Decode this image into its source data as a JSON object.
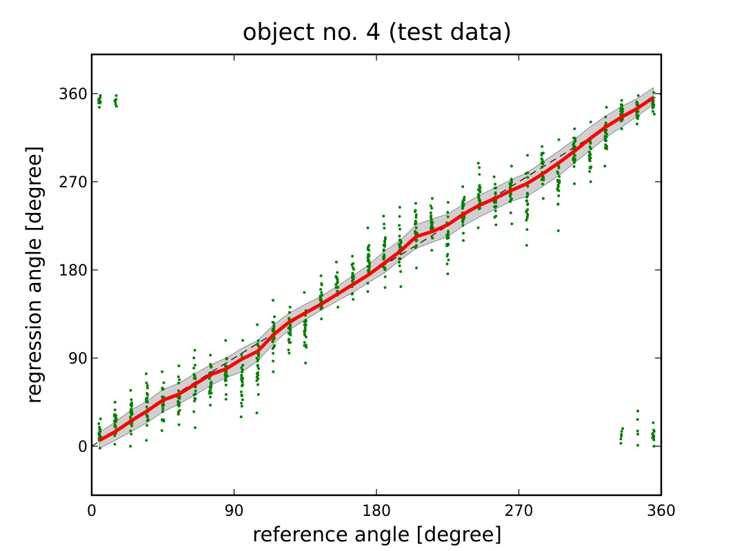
{
  "chart_data": {
    "type": "line",
    "title": "object no. 4 (test data)",
    "xlabel": "reference angle [degree]",
    "ylabel": "regression angle [degree]",
    "xlim": [
      0,
      360
    ],
    "ylim": [
      -50,
      400
    ],
    "xticks": [
      0,
      90,
      180,
      270,
      360
    ],
    "yticks": [
      0,
      90,
      180,
      270,
      360
    ],
    "xtick_labels": [
      "0",
      "90",
      "180",
      "270",
      "360"
    ],
    "ytick_labels": [
      "0",
      "90",
      "180",
      "270",
      "360"
    ],
    "grid": false,
    "legend": "none",
    "colors": {
      "mean_line": "#ff0000",
      "band_fill": "#c8c8c8",
      "band_edge": "#888888",
      "reference_line": "#000000",
      "scatter": "#008000"
    },
    "reference_line": {
      "style": "dashed",
      "x": [
        0,
        360
      ],
      "y": [
        0,
        360
      ]
    },
    "x": [
      5,
      15,
      25,
      35,
      45,
      55,
      65,
      75,
      85,
      95,
      105,
      115,
      125,
      135,
      145,
      155,
      165,
      175,
      185,
      195,
      205,
      215,
      225,
      235,
      245,
      255,
      265,
      275,
      285,
      295,
      305,
      315,
      325,
      335,
      345,
      355
    ],
    "series": [
      {
        "kind": "mean_line",
        "values": [
          6,
          15,
          26,
          36,
          47,
          53,
          63,
          73,
          79,
          89,
          97,
          114,
          127,
          136,
          145,
          155,
          165,
          175,
          187,
          199,
          214,
          219,
          226,
          237,
          246,
          253,
          261,
          268,
          278,
          289,
          301,
          314,
          326,
          336,
          345,
          356
        ]
      },
      {
        "kind": "band",
        "lower": [
          -2,
          6,
          15,
          24,
          35,
          43,
          52,
          62,
          70,
          76,
          87,
          105,
          119,
          129,
          139,
          148,
          157,
          167,
          177,
          190,
          202,
          208,
          214,
          225,
          234,
          242,
          250,
          255,
          265,
          276,
          289,
          302,
          315,
          326,
          337,
          349
        ],
        "upper": [
          14,
          25,
          37,
          46,
          58,
          64,
          74,
          83,
          90,
          100,
          108,
          124,
          136,
          145,
          153,
          163,
          174,
          185,
          199,
          210,
          226,
          232,
          237,
          247,
          256,
          264,
          272,
          279,
          290,
          301,
          313,
          326,
          337,
          347,
          355,
          366
        ]
      }
    ],
    "scatter": [
      {
        "x": 5,
        "y_range": [
          -2,
          28
        ],
        "count": 22
      },
      {
        "x": 15,
        "y_range": [
          2,
          45
        ],
        "count": 24
      },
      {
        "x": 25,
        "y_range": [
          0,
          57
        ],
        "count": 24
      },
      {
        "x": 35,
        "y_range": [
          6,
          74
        ],
        "count": 24
      },
      {
        "x": 45,
        "y_range": [
          16,
          76
        ],
        "count": 24
      },
      {
        "x": 55,
        "y_range": [
          22,
          82
        ],
        "count": 24
      },
      {
        "x": 65,
        "y_range": [
          19,
          98
        ],
        "count": 24
      },
      {
        "x": 75,
        "y_range": [
          42,
          93
        ],
        "count": 24
      },
      {
        "x": 85,
        "y_range": [
          48,
          108
        ],
        "count": 24
      },
      {
        "x": 95,
        "y_range": [
          30,
          108
        ],
        "count": 24
      },
      {
        "x": 105,
        "y_range": [
          34,
          124
        ],
        "count": 24
      },
      {
        "x": 115,
        "y_range": [
          76,
          149
        ],
        "count": 24
      },
      {
        "x": 125,
        "y_range": [
          95,
          142
        ],
        "count": 24
      },
      {
        "x": 135,
        "y_range": [
          85,
          157
        ],
        "count": 24
      },
      {
        "x": 145,
        "y_range": [
          130,
          174
        ],
        "count": 24
      },
      {
        "x": 155,
        "y_range": [
          142,
          188
        ],
        "count": 24
      },
      {
        "x": 165,
        "y_range": [
          150,
          194
        ],
        "count": 24
      },
      {
        "x": 175,
        "y_range": [
          158,
          223
        ],
        "count": 24
      },
      {
        "x": 185,
        "y_range": [
          162,
          235
        ],
        "count": 24
      },
      {
        "x": 195,
        "y_range": [
          163,
          244
        ],
        "count": 24
      },
      {
        "x": 205,
        "y_range": [
          182,
          248
        ],
        "count": 24
      },
      {
        "x": 215,
        "y_range": [
          200,
          253
        ],
        "count": 24
      },
      {
        "x": 225,
        "y_range": [
          176,
          249
        ],
        "count": 24
      },
      {
        "x": 235,
        "y_range": [
          210,
          265
        ],
        "count": 24
      },
      {
        "x": 245,
        "y_range": [
          223,
          289
        ],
        "count": 24
      },
      {
        "x": 255,
        "y_range": [
          226,
          275
        ],
        "count": 24
      },
      {
        "x": 265,
        "y_range": [
          227,
          286
        ],
        "count": 24
      },
      {
        "x": 275,
        "y_range": [
          205,
          297
        ],
        "count": 24
      },
      {
        "x": 285,
        "y_range": [
          253,
          306
        ],
        "count": 24
      },
      {
        "x": 295,
        "y_range": [
          220,
          313
        ],
        "count": 24
      },
      {
        "x": 305,
        "y_range": [
          268,
          324
        ],
        "count": 24
      },
      {
        "x": 315,
        "y_range": [
          270,
          331
        ],
        "count": 24
      },
      {
        "x": 325,
        "y_range": [
          286,
          346
        ],
        "count": 24
      },
      {
        "x": 335,
        "y_range": [
          324,
          353
        ],
        "count": 24
      },
      {
        "x": 345,
        "y_range": [
          329,
          358
        ],
        "count": 22
      },
      {
        "x": 355,
        "y_range": [
          339,
          361
        ],
        "count": 22
      },
      {
        "x": 5,
        "y_range": [
          346,
          358
        ],
        "count": 10
      },
      {
        "x": 15,
        "y_range": [
          347,
          358
        ],
        "count": 8
      },
      {
        "x": 335,
        "y_range": [
          3,
          18
        ],
        "count": 6
      },
      {
        "x": 345,
        "y_range": [
          1,
          36
        ],
        "count": 5
      },
      {
        "x": 355,
        "y_range": [
          0,
          24
        ],
        "count": 14
      }
    ]
  }
}
